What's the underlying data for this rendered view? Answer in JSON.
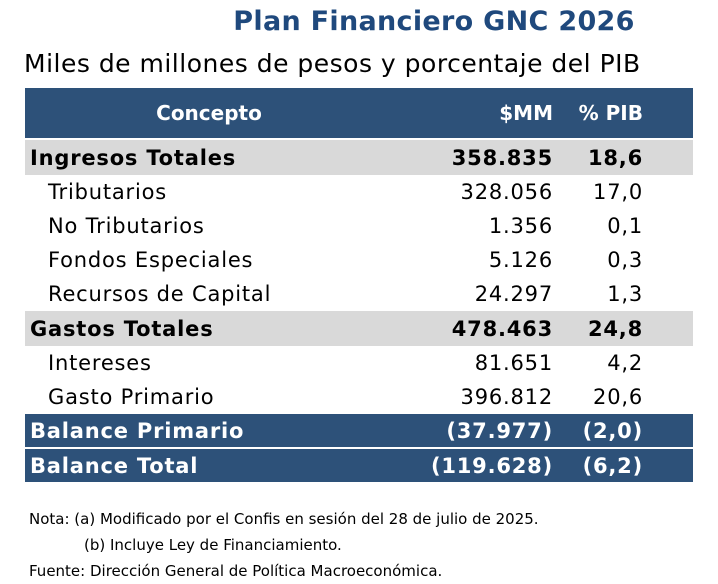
{
  "title": "Plan Financiero GNC 2026",
  "subtitle": "Miles de millones de pesos y porcentaje del PIB",
  "table": {
    "headers": [
      "Concepto",
      "$MM",
      "% PIB"
    ],
    "rows": [
      {
        "label": "Ingresos Totales",
        "mm": "358.835",
        "pib": "18,6",
        "kind": "total"
      },
      {
        "label": "Tributarios",
        "mm": "328.056",
        "pib": "17,0",
        "kind": "sub"
      },
      {
        "label": "No Tributarios",
        "mm": "1.356",
        "pib": "0,1",
        "kind": "sub"
      },
      {
        "label": "Fondos Especiales",
        "mm": "5.126",
        "pib": "0,3",
        "kind": "sub"
      },
      {
        "label": "Recursos de Capital",
        "mm": "24.297",
        "pib": "1,3",
        "kind": "sub"
      },
      {
        "label": "Gastos Totales",
        "mm": "478.463",
        "pib": "24,8",
        "kind": "total"
      },
      {
        "label": "Intereses",
        "mm": "81.651",
        "pib": "4,2",
        "kind": "sub"
      },
      {
        "label": "Gasto Primario",
        "mm": "396.812",
        "pib": "20,6",
        "kind": "sub"
      },
      {
        "label": "Balance Primario",
        "mm": "(37.977)",
        "pib": "(2,0)",
        "kind": "bal"
      },
      {
        "label": "Balance Total",
        "mm": "(119.628)",
        "pib": "(6,2)",
        "kind": "bal"
      }
    ]
  },
  "notes": {
    "note_a": "Nota: (a) Modificado por el Confis en sesión del 28 de julio de 2025.",
    "note_b": "(b) Incluye Ley de Financiamiento.",
    "source": "Fuente: Dirección General de Política Macroeconómica."
  },
  "colors": {
    "header_bg": "#2d5179",
    "title": "#1f497d",
    "total_bg": "#d9d9d9"
  }
}
